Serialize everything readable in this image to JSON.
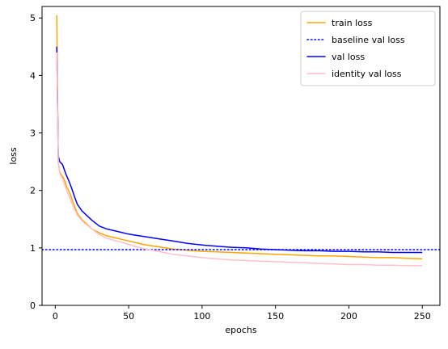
{
  "chart_data": {
    "type": "line",
    "title": "",
    "xlabel": "epochs",
    "ylabel": "loss",
    "xlim": [
      -9,
      262
    ],
    "ylim": [
      0,
      5.2
    ],
    "xticks": [
      0,
      50,
      100,
      150,
      200,
      250
    ],
    "yticks": [
      0,
      1,
      2,
      3,
      4,
      5
    ],
    "grid": false,
    "legend_position": "top-right",
    "series": [
      {
        "name": "train loss",
        "color": "#ffa500",
        "style": "solid",
        "x": [
          1,
          2,
          3,
          4,
          6,
          8,
          10,
          12,
          15,
          18,
          20,
          25,
          30,
          35,
          40,
          45,
          50,
          55,
          60,
          70,
          80,
          90,
          100,
          110,
          120,
          130,
          140,
          150,
          160,
          170,
          180,
          190,
          200,
          210,
          220,
          230,
          240,
          250
        ],
        "y": [
          5.05,
          2.5,
          2.32,
          2.28,
          2.2,
          2.05,
          1.95,
          1.8,
          1.6,
          1.5,
          1.45,
          1.33,
          1.26,
          1.21,
          1.18,
          1.15,
          1.12,
          1.09,
          1.06,
          1.02,
          0.98,
          0.96,
          0.94,
          0.93,
          0.92,
          0.91,
          0.9,
          0.89,
          0.88,
          0.87,
          0.86,
          0.86,
          0.85,
          0.84,
          0.83,
          0.83,
          0.82,
          0.81
        ]
      },
      {
        "name": "baseline val loss",
        "color": "#0000ff",
        "style": "dotted",
        "constant": 0.97
      },
      {
        "name": "val loss",
        "color": "#0000ff",
        "style": "solid",
        "x": [
          1,
          2,
          3,
          5,
          7,
          9,
          11,
          13,
          15,
          18,
          20,
          25,
          30,
          35,
          40,
          45,
          50,
          55,
          60,
          70,
          80,
          90,
          100,
          110,
          120,
          130,
          140,
          150,
          160,
          170,
          180,
          190,
          200,
          210,
          220,
          230,
          240,
          250
        ],
        "y": [
          4.5,
          2.6,
          2.5,
          2.45,
          2.3,
          2.18,
          2.05,
          1.9,
          1.76,
          1.65,
          1.6,
          1.48,
          1.38,
          1.33,
          1.3,
          1.27,
          1.24,
          1.22,
          1.2,
          1.16,
          1.12,
          1.08,
          1.05,
          1.03,
          1.01,
          1.0,
          0.98,
          0.97,
          0.96,
          0.95,
          0.95,
          0.94,
          0.94,
          0.93,
          0.93,
          0.92,
          0.92,
          0.92
        ]
      },
      {
        "name": "identity val loss",
        "color": "#ffc0cb",
        "style": "solid",
        "x": [
          1,
          2,
          3,
          5,
          7,
          9,
          11,
          13,
          15,
          18,
          20,
          25,
          30,
          35,
          40,
          45,
          50,
          55,
          60,
          70,
          80,
          90,
          100,
          110,
          120,
          130,
          140,
          150,
          160,
          170,
          180,
          190,
          200,
          210,
          220,
          230,
          240,
          250
        ],
        "y": [
          4.4,
          2.55,
          2.3,
          2.2,
          2.05,
          1.92,
          1.8,
          1.68,
          1.57,
          1.48,
          1.43,
          1.33,
          1.23,
          1.17,
          1.13,
          1.1,
          1.06,
          1.02,
          0.99,
          0.94,
          0.89,
          0.86,
          0.83,
          0.81,
          0.79,
          0.78,
          0.77,
          0.76,
          0.75,
          0.74,
          0.73,
          0.72,
          0.71,
          0.71,
          0.7,
          0.7,
          0.69,
          0.69
        ]
      }
    ]
  }
}
